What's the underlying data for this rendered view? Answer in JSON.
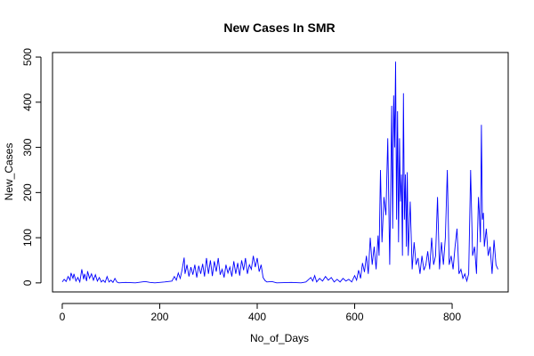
{
  "chart_data": {
    "type": "line",
    "title": "New Cases In SMR",
    "xlabel": "No_of_Days",
    "ylabel": "New_Cases",
    "xlim": [
      -20,
      915
    ],
    "ylim": [
      -20,
      510
    ],
    "xticks": [
      0,
      200,
      400,
      600,
      800
    ],
    "yticks": [
      0,
      100,
      200,
      300,
      400,
      500
    ],
    "grid": false,
    "line_color": "#0000ff",
    "series": [
      {
        "values": [
          [
            0,
            2
          ],
          [
            4,
            8
          ],
          [
            8,
            3
          ],
          [
            12,
            14
          ],
          [
            16,
            6
          ],
          [
            18,
            22
          ],
          [
            22,
            10
          ],
          [
            24,
            20
          ],
          [
            28,
            4
          ],
          [
            32,
            12
          ],
          [
            36,
            2
          ],
          [
            40,
            30
          ],
          [
            44,
            8
          ],
          [
            46,
            20
          ],
          [
            50,
            4
          ],
          [
            52,
            26
          ],
          [
            56,
            10
          ],
          [
            60,
            20
          ],
          [
            64,
            6
          ],
          [
            68,
            18
          ],
          [
            72,
            4
          ],
          [
            76,
            12
          ],
          [
            80,
            2
          ],
          [
            84,
            6
          ],
          [
            88,
            1
          ],
          [
            92,
            14
          ],
          [
            96,
            2
          ],
          [
            100,
            6
          ],
          [
            104,
            1
          ],
          [
            108,
            10
          ],
          [
            112,
            2
          ],
          [
            116,
            0
          ],
          [
            130,
            1
          ],
          [
            150,
            0
          ],
          [
            170,
            3
          ],
          [
            180,
            1
          ],
          [
            190,
            0
          ],
          [
            210,
            2
          ],
          [
            225,
            4
          ],
          [
            230,
            14
          ],
          [
            234,
            6
          ],
          [
            238,
            22
          ],
          [
            242,
            10
          ],
          [
            246,
            30
          ],
          [
            250,
            56
          ],
          [
            252,
            20
          ],
          [
            256,
            40
          ],
          [
            260,
            14
          ],
          [
            264,
            35
          ],
          [
            268,
            18
          ],
          [
            272,
            40
          ],
          [
            276,
            12
          ],
          [
            280,
            38
          ],
          [
            284,
            20
          ],
          [
            288,
            42
          ],
          [
            292,
            14
          ],
          [
            296,
            55
          ],
          [
            300,
            20
          ],
          [
            304,
            50
          ],
          [
            308,
            15
          ],
          [
            312,
            48
          ],
          [
            316,
            25
          ],
          [
            320,
            55
          ],
          [
            324,
            18
          ],
          [
            328,
            30
          ],
          [
            332,
            12
          ],
          [
            336,
            40
          ],
          [
            340,
            22
          ],
          [
            344,
            35
          ],
          [
            348,
            14
          ],
          [
            352,
            48
          ],
          [
            356,
            20
          ],
          [
            360,
            44
          ],
          [
            364,
            16
          ],
          [
            368,
            50
          ],
          [
            372,
            28
          ],
          [
            376,
            55
          ],
          [
            380,
            20
          ],
          [
            384,
            40
          ],
          [
            388,
            30
          ],
          [
            392,
            60
          ],
          [
            396,
            35
          ],
          [
            400,
            55
          ],
          [
            404,
            25
          ],
          [
            408,
            40
          ],
          [
            412,
            12
          ],
          [
            416,
            5
          ],
          [
            420,
            2
          ],
          [
            430,
            3
          ],
          [
            440,
            0
          ],
          [
            470,
            1
          ],
          [
            490,
            0
          ],
          [
            500,
            2
          ],
          [
            510,
            12
          ],
          [
            514,
            4
          ],
          [
            518,
            16
          ],
          [
            522,
            2
          ],
          [
            528,
            10
          ],
          [
            534,
            4
          ],
          [
            540,
            14
          ],
          [
            546,
            6
          ],
          [
            552,
            12
          ],
          [
            558,
            2
          ],
          [
            564,
            8
          ],
          [
            570,
            2
          ],
          [
            576,
            10
          ],
          [
            582,
            4
          ],
          [
            588,
            8
          ],
          [
            594,
            2
          ],
          [
            600,
            16
          ],
          [
            604,
            6
          ],
          [
            608,
            28
          ],
          [
            612,
            10
          ],
          [
            616,
            44
          ],
          [
            620,
            24
          ],
          [
            624,
            60
          ],
          [
            628,
            20
          ],
          [
            632,
            100
          ],
          [
            636,
            40
          ],
          [
            640,
            80
          ],
          [
            644,
            30
          ],
          [
            648,
            105
          ],
          [
            650,
            60
          ],
          [
            653,
            250
          ],
          [
            656,
            90
          ],
          [
            660,
            190
          ],
          [
            664,
            150
          ],
          [
            668,
            320
          ],
          [
            672,
            40
          ],
          [
            676,
            392
          ],
          [
            678,
            120
          ],
          [
            680,
            415
          ],
          [
            682,
            300
          ],
          [
            684,
            490
          ],
          [
            686,
            140
          ],
          [
            688,
            380
          ],
          [
            690,
            90
          ],
          [
            692,
            320
          ],
          [
            694,
            180
          ],
          [
            696,
            240
          ],
          [
            698,
            60
          ],
          [
            700,
            420
          ],
          [
            702,
            140
          ],
          [
            704,
            240
          ],
          [
            706,
            80
          ],
          [
            708,
            245
          ],
          [
            710,
            60
          ],
          [
            714,
            180
          ],
          [
            718,
            30
          ],
          [
            722,
            90
          ],
          [
            726,
            40
          ],
          [
            730,
            55
          ],
          [
            734,
            20
          ],
          [
            738,
            60
          ],
          [
            742,
            28
          ],
          [
            746,
            40
          ],
          [
            750,
            70
          ],
          [
            754,
            30
          ],
          [
            758,
            100
          ],
          [
            762,
            40
          ],
          [
            766,
            60
          ],
          [
            770,
            190
          ],
          [
            774,
            30
          ],
          [
            778,
            90
          ],
          [
            782,
            40
          ],
          [
            786,
            100
          ],
          [
            790,
            250
          ],
          [
            794,
            40
          ],
          [
            798,
            60
          ],
          [
            802,
            30
          ],
          [
            806,
            80
          ],
          [
            810,
            120
          ],
          [
            814,
            20
          ],
          [
            818,
            30
          ],
          [
            822,
            10
          ],
          [
            826,
            20
          ],
          [
            830,
            4
          ],
          [
            834,
            20
          ],
          [
            838,
            250
          ],
          [
            842,
            60
          ],
          [
            846,
            80
          ],
          [
            850,
            20
          ],
          [
            854,
            190
          ],
          [
            856,
            150
          ],
          [
            858,
            90
          ],
          [
            860,
            350
          ],
          [
            862,
            140
          ],
          [
            864,
            155
          ],
          [
            866,
            80
          ],
          [
            870,
            120
          ],
          [
            874,
            60
          ],
          [
            878,
            80
          ],
          [
            882,
            20
          ],
          [
            886,
            95
          ],
          [
            890,
            40
          ],
          [
            894,
            30
          ]
        ]
      }
    ]
  }
}
